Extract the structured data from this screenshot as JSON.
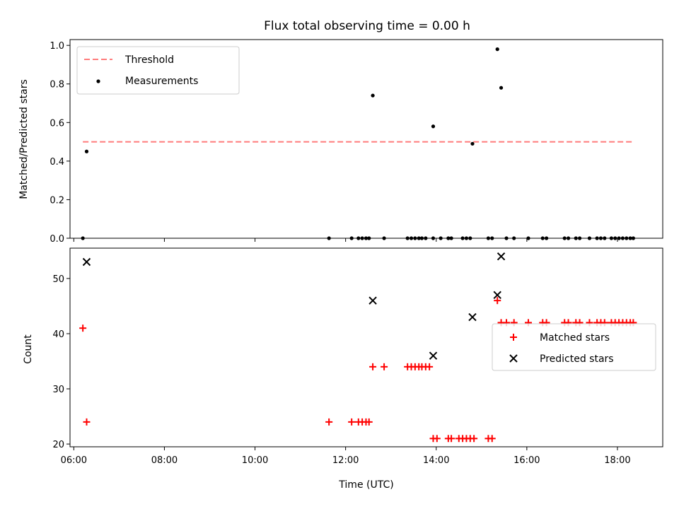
{
  "chart_data": [
    {
      "type": "scatter",
      "title": "Flux total observing time = 0.00 h",
      "ylabel": "Matched/Predicted stars",
      "xlim": [
        "05:55",
        "19:00"
      ],
      "ylim": [
        0,
        1.03
      ],
      "xticks": [
        "06:00",
        "08:00",
        "10:00",
        "12:00",
        "14:00",
        "16:00",
        "18:00"
      ],
      "yticks": [
        "0.0",
        "0.2",
        "0.4",
        "0.6",
        "0.8",
        "1.0"
      ],
      "legend_position": "top-left",
      "grid": false,
      "colors": {
        "threshold": "#ff7b7b",
        "measurements": "#000000"
      },
      "series": [
        {
          "name": "Threshold",
          "style": "dashed-line",
          "points": [
            [
              "06:12",
              0.5
            ],
            [
              "18:20",
              0.5
            ]
          ]
        },
        {
          "name": "Measurements",
          "style": "dot",
          "points": [
            [
              "06:12",
              0.0
            ],
            [
              "06:17",
              0.45
            ],
            [
              "11:38",
              0.0
            ],
            [
              "12:08",
              0.0
            ],
            [
              "12:17",
              0.0
            ],
            [
              "12:22",
              0.0
            ],
            [
              "12:27",
              0.0
            ],
            [
              "12:31",
              0.0
            ],
            [
              "12:36",
              0.74
            ],
            [
              "12:51",
              0.0
            ],
            [
              "13:22",
              0.0
            ],
            [
              "13:27",
              0.0
            ],
            [
              "13:32",
              0.0
            ],
            [
              "13:37",
              0.0
            ],
            [
              "13:41",
              0.0
            ],
            [
              "13:46",
              0.0
            ],
            [
              "13:56",
              0.0
            ],
            [
              "13:56",
              0.58
            ],
            [
              "14:06",
              0.0
            ],
            [
              "14:16",
              0.0
            ],
            [
              "14:20",
              0.0
            ],
            [
              "14:35",
              0.0
            ],
            [
              "14:40",
              0.0
            ],
            [
              "14:45",
              0.0
            ],
            [
              "14:48",
              0.49
            ],
            [
              "15:09",
              0.0
            ],
            [
              "15:14",
              0.0
            ],
            [
              "15:21",
              0.98
            ],
            [
              "15:26",
              0.78
            ],
            [
              "15:33",
              0.0
            ],
            [
              "15:43",
              0.0
            ],
            [
              "16:02",
              0.0
            ],
            [
              "16:21",
              0.0
            ],
            [
              "16:26",
              0.0
            ],
            [
              "16:50",
              0.0
            ],
            [
              "16:55",
              0.0
            ],
            [
              "17:05",
              0.0
            ],
            [
              "17:10",
              0.0
            ],
            [
              "17:23",
              0.0
            ],
            [
              "17:33",
              0.0
            ],
            [
              "17:38",
              0.0
            ],
            [
              "17:43",
              0.0
            ],
            [
              "17:52",
              0.0
            ],
            [
              "17:57",
              0.0
            ],
            [
              "18:02",
              0.0
            ],
            [
              "18:07",
              0.0
            ],
            [
              "18:12",
              0.0
            ],
            [
              "18:17",
              0.0
            ],
            [
              "18:21",
              0.0
            ]
          ]
        }
      ]
    },
    {
      "type": "scatter",
      "ylabel": "Count",
      "xlabel": "Time (UTC)",
      "xlim": [
        "05:55",
        "19:00"
      ],
      "ylim": [
        19.5,
        55.5
      ],
      "xticks": [
        "06:00",
        "08:00",
        "10:00",
        "12:00",
        "14:00",
        "16:00",
        "18:00"
      ],
      "yticks": [
        "20",
        "30",
        "40",
        "50"
      ],
      "legend_position": "center-right",
      "grid": false,
      "colors": {
        "matched": "#ff0000",
        "predicted": "#000000"
      },
      "series": [
        {
          "name": "Matched stars",
          "marker": "plus",
          "points": [
            [
              "06:12",
              41
            ],
            [
              "06:17",
              24
            ],
            [
              "11:38",
              24
            ],
            [
              "12:08",
              24
            ],
            [
              "12:17",
              24
            ],
            [
              "12:22",
              24
            ],
            [
              "12:27",
              24
            ],
            [
              "12:31",
              24
            ],
            [
              "12:36",
              34
            ],
            [
              "12:51",
              34
            ],
            [
              "13:22",
              34
            ],
            [
              "13:27",
              34
            ],
            [
              "13:32",
              34
            ],
            [
              "13:37",
              34
            ],
            [
              "13:41",
              34
            ],
            [
              "13:46",
              34
            ],
            [
              "13:51",
              34
            ],
            [
              "13:56",
              21
            ],
            [
              "14:01",
              21
            ],
            [
              "14:16",
              21
            ],
            [
              "14:20",
              21
            ],
            [
              "14:30",
              21
            ],
            [
              "14:35",
              21
            ],
            [
              "14:40",
              21
            ],
            [
              "14:45",
              21
            ],
            [
              "14:50",
              21
            ],
            [
              "15:09",
              21
            ],
            [
              "15:14",
              21
            ],
            [
              "15:21",
              46
            ],
            [
              "15:26",
              42
            ],
            [
              "15:33",
              42
            ],
            [
              "15:43",
              42
            ],
            [
              "16:02",
              42
            ],
            [
              "16:21",
              42
            ],
            [
              "16:26",
              42
            ],
            [
              "16:50",
              42
            ],
            [
              "16:55",
              42
            ],
            [
              "17:05",
              42
            ],
            [
              "17:10",
              42
            ],
            [
              "17:23",
              42
            ],
            [
              "17:33",
              42
            ],
            [
              "17:38",
              42
            ],
            [
              "17:43",
              42
            ],
            [
              "17:52",
              42
            ],
            [
              "17:57",
              42
            ],
            [
              "18:02",
              42
            ],
            [
              "18:07",
              42
            ],
            [
              "18:12",
              42
            ],
            [
              "18:17",
              42
            ],
            [
              "18:21",
              42
            ]
          ]
        },
        {
          "name": "Predicted stars",
          "marker": "x",
          "points": [
            [
              "06:17",
              53
            ],
            [
              "12:36",
              46
            ],
            [
              "13:56",
              36
            ],
            [
              "14:48",
              43
            ],
            [
              "15:21",
              47
            ],
            [
              "15:26",
              54
            ]
          ]
        }
      ]
    }
  ]
}
